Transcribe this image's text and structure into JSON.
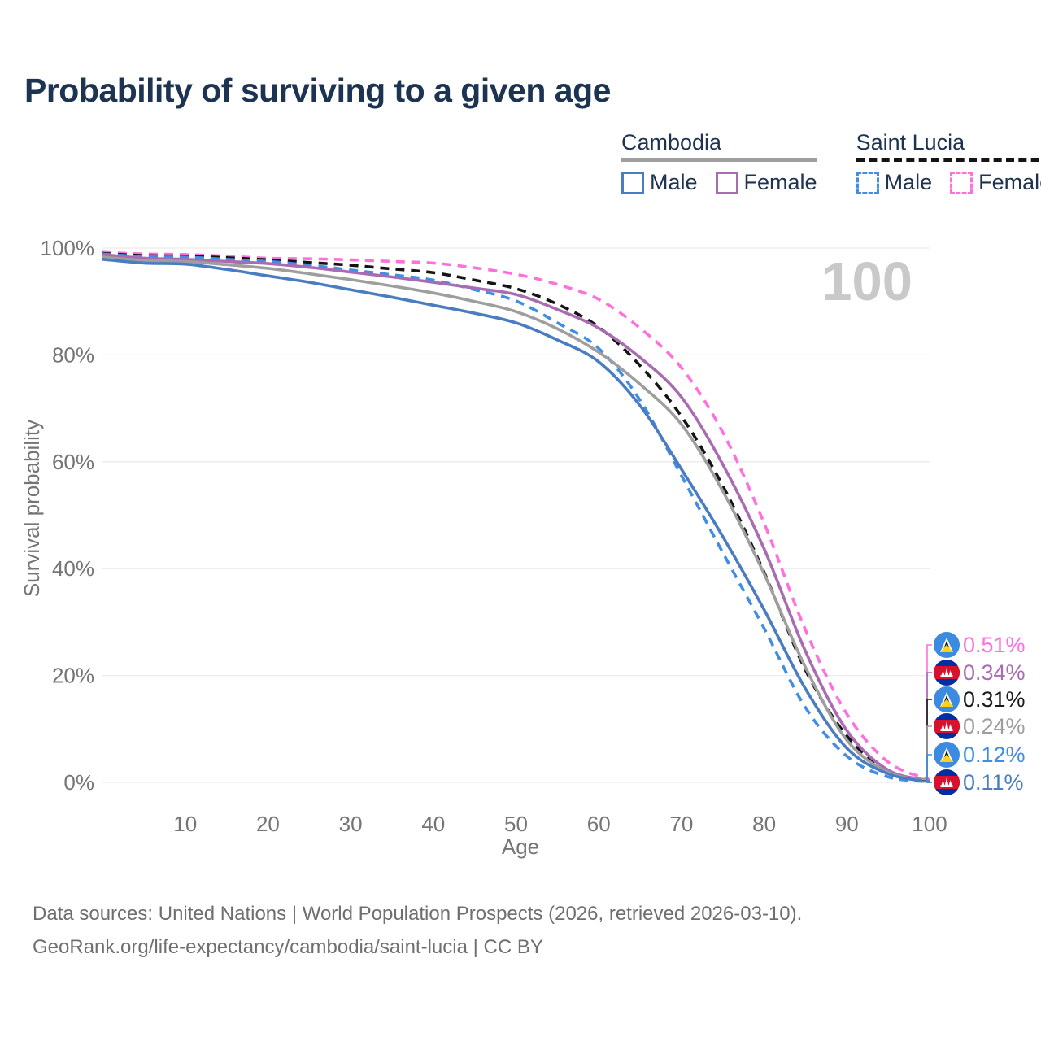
{
  "title": "Probability of surviving to a given age",
  "watermark": "100",
  "legend": {
    "groups": [
      {
        "name": "Cambodia",
        "underline_style": "solid",
        "underline_color": "#9e9e9e",
        "items": [
          {
            "label": "Male",
            "color": "#4a7cc2",
            "dash": false
          },
          {
            "label": "Female",
            "color": "#a96cb3",
            "dash": false
          }
        ]
      },
      {
        "name": "Saint Lucia",
        "underline_style": "dashed",
        "underline_color": "#141414",
        "items": [
          {
            "label": "Male",
            "color": "#3f8ee3",
            "dash": true
          },
          {
            "label": "Female",
            "color": "#ff70dd",
            "dash": true
          }
        ]
      }
    ]
  },
  "chart_data": {
    "type": "line",
    "title": "Probability of surviving to a given age",
    "xlabel": "Age",
    "ylabel": "Survival probability",
    "xlim": [
      0,
      100
    ],
    "ylim": [
      0,
      100
    ],
    "grid": "horizontal",
    "x_ticks": [
      10,
      20,
      30,
      40,
      50,
      60,
      70,
      80,
      90,
      100
    ],
    "y_ticks": [
      {
        "value": 0,
        "label": "0%"
      },
      {
        "value": 20,
        "label": "20%"
      },
      {
        "value": 40,
        "label": "40%"
      },
      {
        "value": 60,
        "label": "60%"
      },
      {
        "value": 80,
        "label": "80%"
      },
      {
        "value": 100,
        "label": "100%"
      }
    ],
    "x": [
      0,
      5,
      10,
      15,
      20,
      25,
      30,
      35,
      40,
      45,
      50,
      55,
      60,
      65,
      70,
      75,
      80,
      85,
      90,
      95,
      100
    ],
    "series": [
      {
        "name": "Saint Lucia Female",
        "country": "Saint Lucia",
        "sex": "female",
        "color": "#ff70dd",
        "dash": true,
        "values": [
          99.2,
          98.9,
          98.8,
          98.5,
          98.1,
          98.0,
          97.8,
          97.5,
          97.2,
          96.3,
          95.1,
          93.2,
          90.4,
          85.0,
          77.6,
          65.5,
          48.5,
          28.5,
          12.8,
          3.8,
          0.51
        ]
      },
      {
        "name": "Saint Lucia Both sexes",
        "country": "Saint Lucia",
        "sex": "total",
        "color": "#141414",
        "dash": true,
        "values": [
          99.0,
          98.6,
          98.5,
          98.2,
          97.8,
          97.3,
          96.8,
          96.1,
          95.4,
          94.0,
          92.4,
          89.5,
          85.2,
          78.0,
          68.5,
          55.5,
          39.3,
          21.0,
          8.7,
          2.2,
          0.31
        ]
      },
      {
        "name": "Saint Lucia Male",
        "country": "Saint Lucia",
        "sex": "male",
        "color": "#3f8ee3",
        "dash": true,
        "values": [
          98.9,
          98.4,
          98.3,
          97.9,
          97.5,
          96.8,
          95.9,
          95.0,
          94.0,
          92.2,
          90.1,
          86.0,
          81.2,
          71.5,
          57.4,
          43.0,
          28.8,
          14.0,
          4.9,
          1.0,
          0.12
        ]
      },
      {
        "name": "Cambodia Female",
        "country": "Cambodia",
        "sex": "female",
        "color": "#a96cb3",
        "dash": false,
        "values": [
          98.8,
          98.1,
          97.9,
          97.5,
          97.1,
          96.4,
          95.5,
          94.6,
          93.6,
          92.5,
          91.3,
          88.5,
          85.0,
          79.5,
          72.1,
          59.5,
          43.7,
          24.5,
          9.7,
          2.3,
          0.34
        ]
      },
      {
        "name": "Cambodia Both sexes",
        "country": "Cambodia",
        "sex": "total",
        "color": "#9e9e9e",
        "dash": false,
        "values": [
          98.3,
          97.7,
          97.5,
          96.9,
          96.2,
          95.2,
          94.1,
          92.9,
          91.6,
          90.0,
          88.1,
          84.9,
          80.5,
          74.5,
          67.0,
          54.5,
          39.0,
          21.5,
          7.9,
          1.9,
          0.24
        ]
      },
      {
        "name": "Cambodia Male",
        "country": "Cambodia",
        "sex": "male",
        "color": "#4a7cc2",
        "dash": false,
        "values": [
          97.9,
          97.2,
          97.0,
          96.0,
          94.8,
          93.6,
          92.2,
          90.8,
          89.3,
          87.8,
          86.0,
          82.8,
          78.7,
          70.5,
          58.6,
          46.0,
          32.3,
          17.5,
          6.4,
          1.6,
          0.11
        ]
      }
    ]
  },
  "end_labels": [
    {
      "country": "Saint Lucia",
      "flag": "lc",
      "value": "0.51%",
      "color": "#ff70dd"
    },
    {
      "country": "Cambodia",
      "flag": "kh",
      "value": "0.34%",
      "color": "#a96cb3"
    },
    {
      "country": "Saint Lucia",
      "flag": "lc",
      "value": "0.31%",
      "color": "#1a1a1a"
    },
    {
      "country": "Cambodia",
      "flag": "kh",
      "value": "0.24%",
      "color": "#9e9e9e"
    },
    {
      "country": "Saint Lucia",
      "flag": "lc",
      "value": "0.12%",
      "color": "#3f8ee3"
    },
    {
      "country": "Cambodia",
      "flag": "kh",
      "value": "0.11%",
      "color": "#4a7cc2"
    }
  ],
  "colors": {
    "title": "#1c3452",
    "axis_text": "#757575",
    "gridline": "#ebebeb",
    "watermark": "#c9c9c9",
    "footer_text": "#6f6f6f"
  },
  "footer": {
    "line1": "Data sources: United Nations | World Population Prospects (2026, retrieved 2026-03-10).",
    "line2": "GeoRank.org/life-expectancy/cambodia/saint-lucia | CC BY"
  }
}
